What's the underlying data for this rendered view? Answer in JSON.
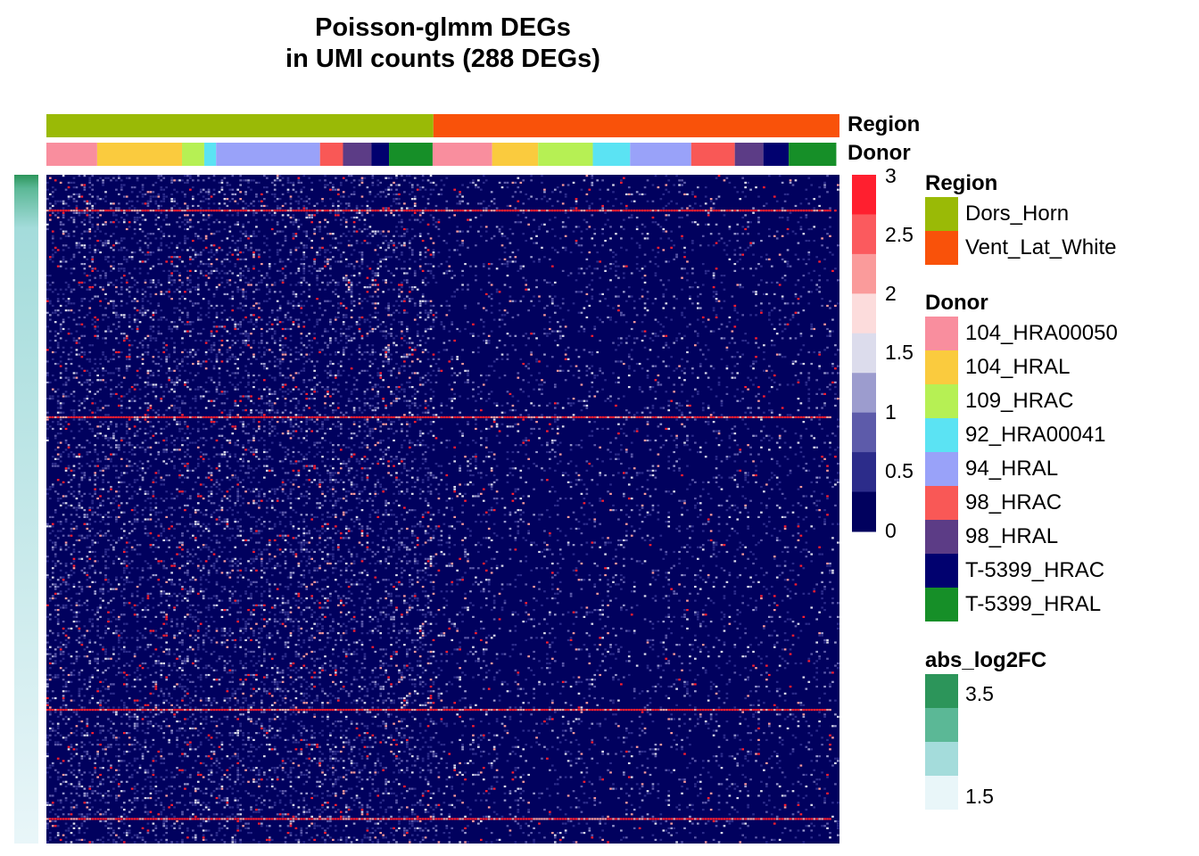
{
  "title": {
    "line1": "Poisson-glmm DEGs",
    "line2": "in UMI counts (288 DEGs)"
  },
  "annotation_labels": {
    "region": "Region",
    "donor": "Donor"
  },
  "legends": {
    "region": {
      "title": "Region",
      "items": [
        {
          "label": "Dors_Horn",
          "color": "#9ABA06"
        },
        {
          "label": "Vent_Lat_White",
          "color": "#F9520A"
        }
      ]
    },
    "donor": {
      "title": "Donor",
      "items": [
        {
          "label": "104_HRA00050",
          "color": "#F98E9E"
        },
        {
          "label": "104_HRAL",
          "color": "#FACB3E"
        },
        {
          "label": "109_HRAC",
          "color": "#B6F054"
        },
        {
          "label": "92_HRA00041",
          "color": "#5BE3F3"
        },
        {
          "label": "94_HRAL",
          "color": "#99A2F9"
        },
        {
          "label": "98_HRAC",
          "color": "#F95856"
        },
        {
          "label": "98_HRAL",
          "color": "#5C3C86"
        },
        {
          "label": "T-5399_HRAC",
          "color": "#01016F"
        },
        {
          "label": "T-5399_HRAL",
          "color": "#168F28"
        }
      ]
    },
    "abs_log2FC": {
      "title": "abs_log2FC",
      "colors": [
        "#2C955A",
        "#5BB896",
        "#A4DCDB",
        "#E9F6F9"
      ],
      "labels": [
        "3.5",
        "1.5"
      ]
    },
    "expression": {
      "colors": [
        "#01015E",
        "#2C2C8A",
        "#5D5BAA",
        "#9C9CCE",
        "#DCDCEC",
        "#FCDCDC",
        "#FA9B9B",
        "#FB5A5E",
        "#FF1F2F"
      ],
      "labels": [
        "3",
        "2.5",
        "2",
        "1.5",
        "1",
        "0.5",
        "0"
      ]
    }
  },
  "chart_data": {
    "type": "heatmap",
    "title": "Poisson-glmm DEGs in UMI counts (288 DEGs)",
    "n_rows": 288,
    "value_range": [
      0,
      3
    ],
    "column_groups": {
      "Region": [
        {
          "group": "Dors_Horn",
          "share": 0.488
        },
        {
          "group": "Vent_Lat_White",
          "share": 0.512
        }
      ],
      "Donor": [
        {
          "region": "Dors_Horn",
          "donor": "104_HRA00050",
          "share": 0.064
        },
        {
          "region": "Dors_Horn",
          "donor": "104_HRAL",
          "share": 0.107
        },
        {
          "region": "Dors_Horn",
          "donor": "109_HRAC",
          "share": 0.028
        },
        {
          "region": "Dors_Horn",
          "donor": "92_HRA00041",
          "share": 0.015
        },
        {
          "region": "Dors_Horn",
          "donor": "94_HRAL",
          "share": 0.131
        },
        {
          "region": "Dors_Horn",
          "donor": "98_HRAC",
          "share": 0.029
        },
        {
          "region": "Dors_Horn",
          "donor": "98_HRAL",
          "share": 0.036
        },
        {
          "region": "Dors_Horn",
          "donor": "T-5399_HRAC",
          "share": 0.022
        },
        {
          "region": "Dors_Horn",
          "donor": "T-5399_HRAL",
          "share": 0.055
        },
        {
          "region": "Vent_Lat_White",
          "donor": "104_HRA00050",
          "share": 0.075
        },
        {
          "region": "Vent_Lat_White",
          "donor": "104_HRAL",
          "share": 0.058
        },
        {
          "region": "Vent_Lat_White",
          "donor": "109_HRAC",
          "share": 0.069
        },
        {
          "region": "Vent_Lat_White",
          "donor": "92_HRA00041",
          "share": 0.047
        },
        {
          "region": "Vent_Lat_White",
          "donor": "94_HRAL",
          "share": 0.077
        },
        {
          "region": "Vent_Lat_White",
          "donor": "98_HRAC",
          "share": 0.055
        },
        {
          "region": "Vent_Lat_White",
          "donor": "98_HRAL",
          "share": 0.036
        },
        {
          "region": "Vent_Lat_White",
          "donor": "T-5399_HRAC",
          "share": 0.032
        },
        {
          "region": "Vent_Lat_White",
          "donor": "T-5399_HRAL",
          "share": 0.06
        }
      ]
    },
    "row_annotation": {
      "name": "abs_log2FC",
      "sorted": "descending",
      "range": [
        1.5,
        3.5
      ]
    },
    "highlighted_row_fractions": [
      0.053,
      0.36,
      0.8,
      0.962
    ]
  }
}
